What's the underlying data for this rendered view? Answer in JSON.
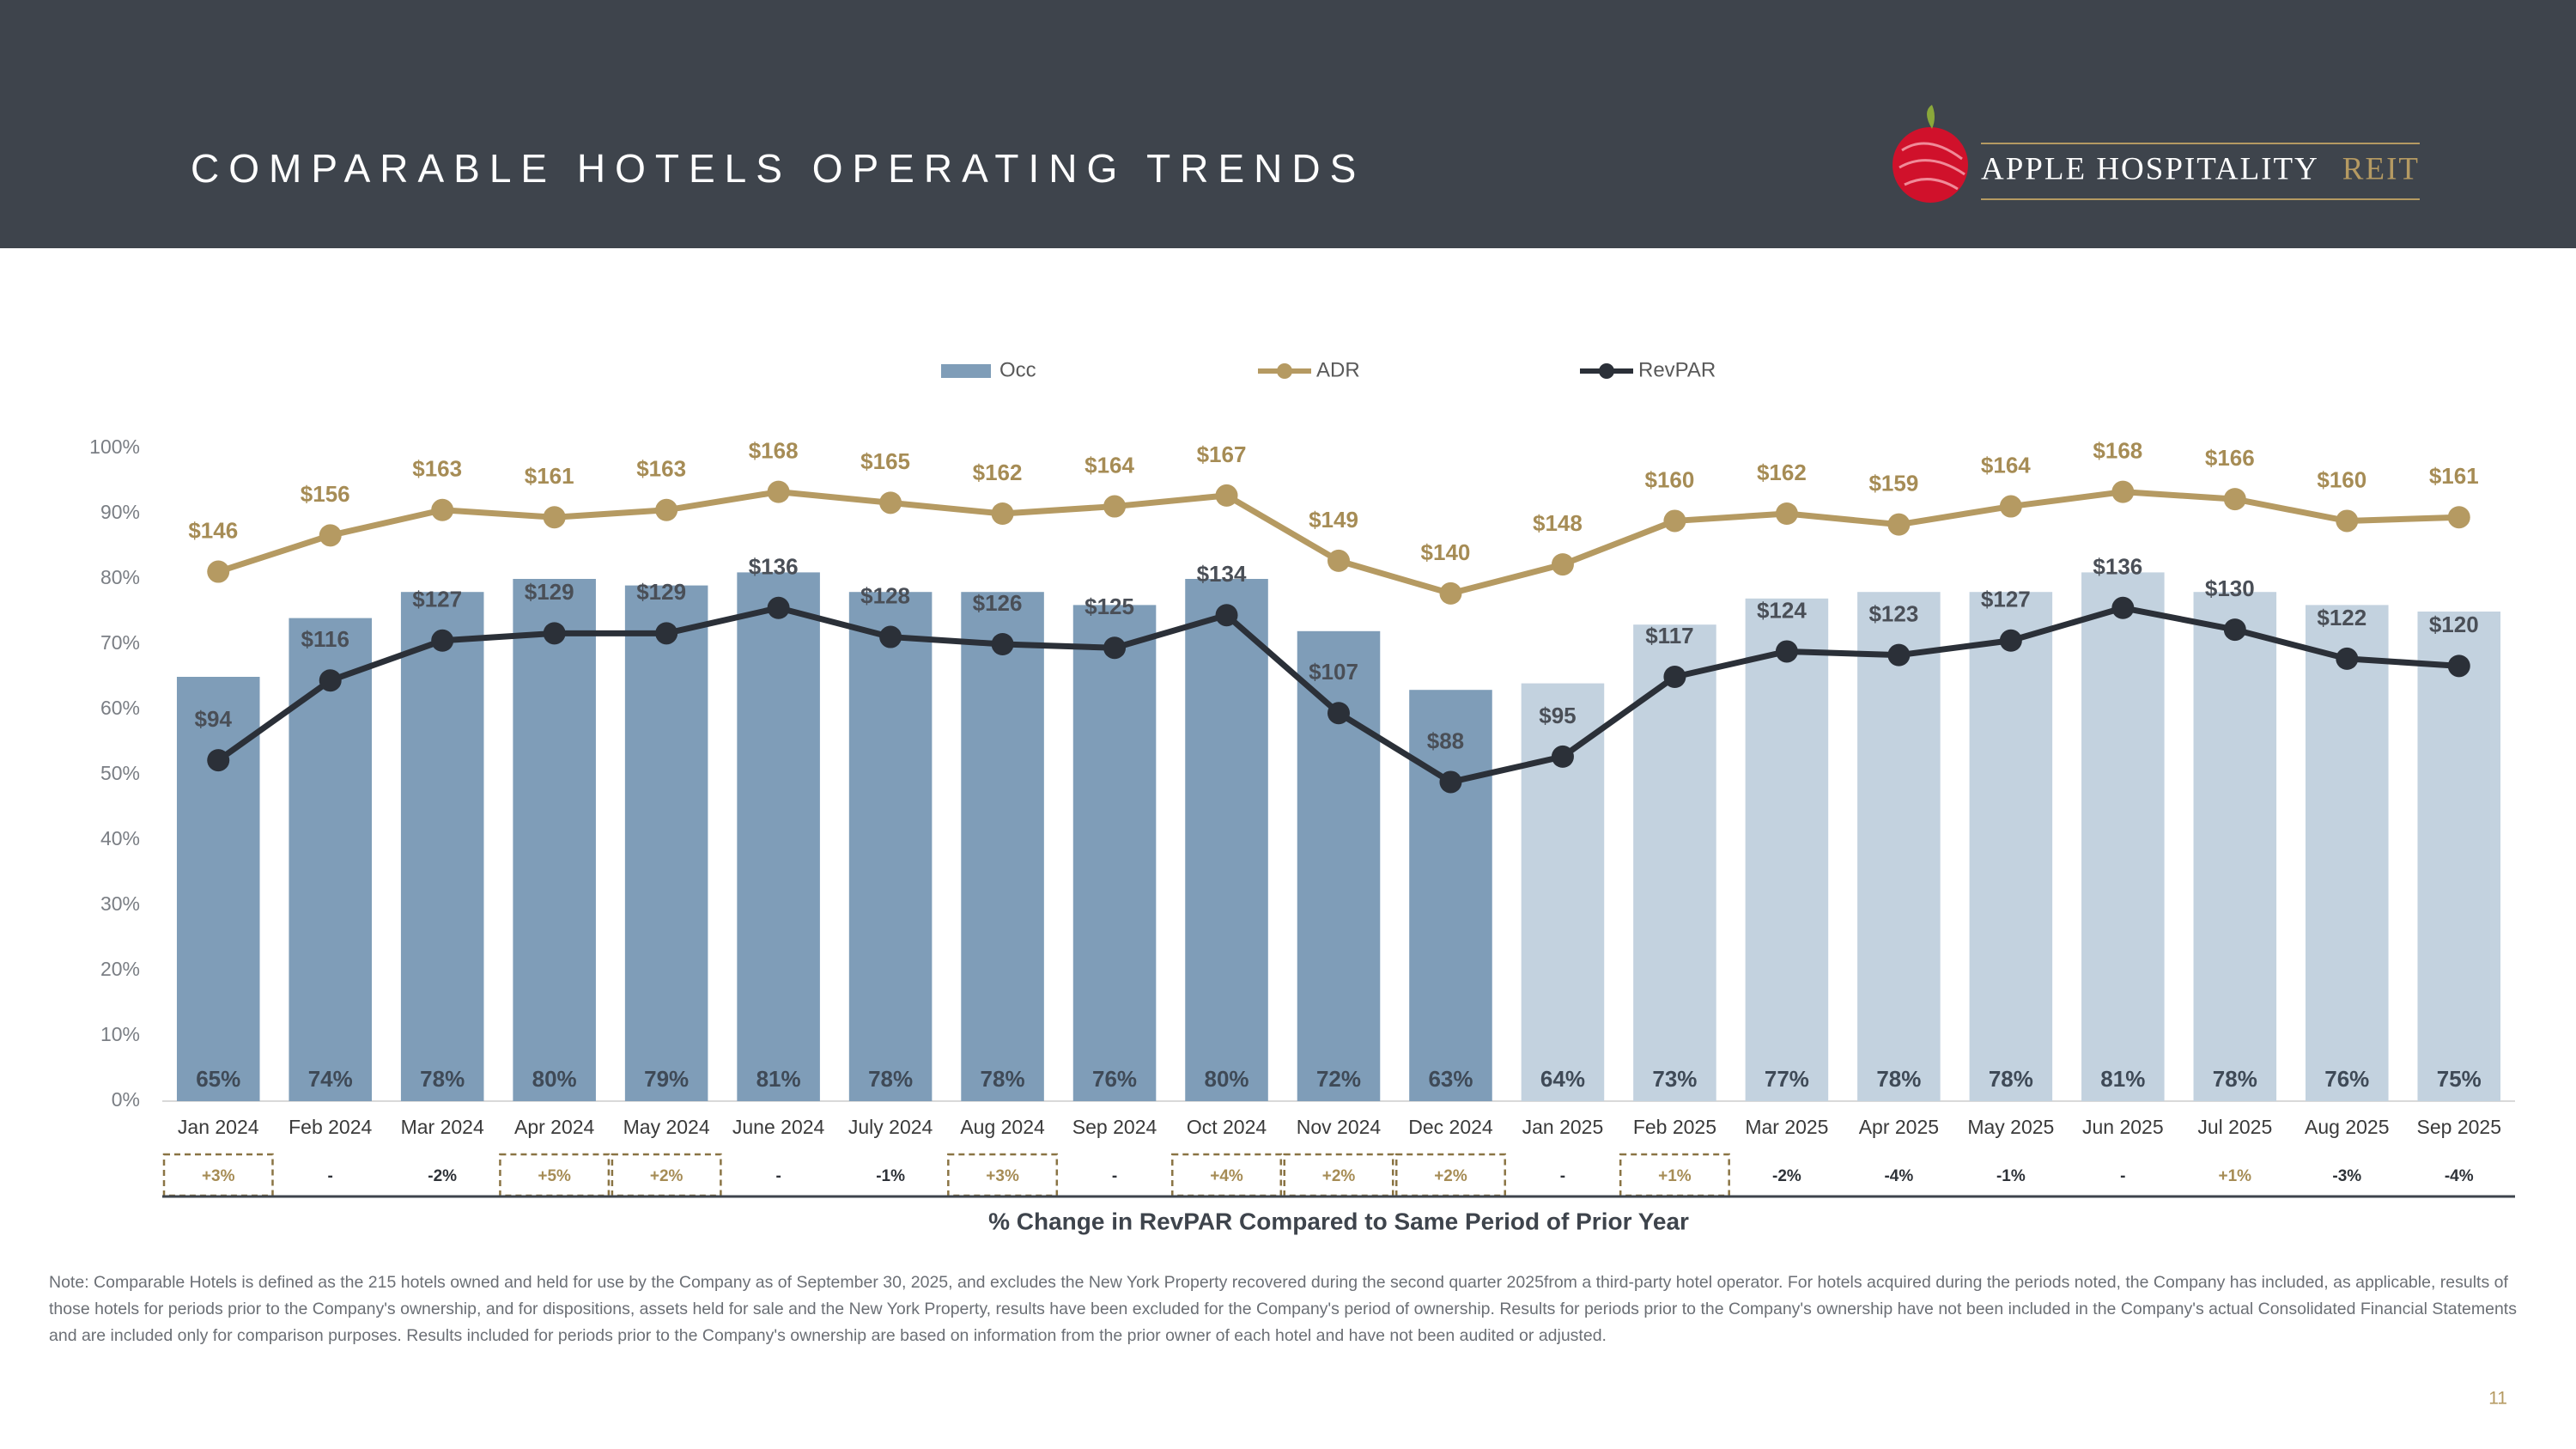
{
  "header": {
    "title": "COMPARABLE HOTELS OPERATING TRENDS",
    "logo_name": "APPLE HOSPITALITY",
    "logo_suffix": "REIT"
  },
  "chart_data": {
    "type": "combo",
    "categories": [
      "Jan 2024",
      "Feb 2024",
      "Mar 2024",
      "Apr 2024",
      "May 2024",
      "June 2024",
      "July 2024",
      "Aug 2024",
      "Sep 2024",
      "Oct 2024",
      "Nov 2024",
      "Dec 2024",
      "Jan 2025",
      "Feb 2025",
      "Mar 2025",
      "Apr 2025",
      "May 2025",
      "Jun 2025",
      "Jul 2025",
      "Aug 2025",
      "Sep 2025"
    ],
    "series": [
      {
        "name": "Occ",
        "type": "bar",
        "color": "#7f9db8",
        "colors": [
          "#7f9db8",
          "#7f9db8",
          "#7f9db8",
          "#7f9db8",
          "#7f9db8",
          "#7f9db8",
          "#7f9db8",
          "#7f9db8",
          "#7f9db8",
          "#7f9db8",
          "#7f9db8",
          "#7f9db8",
          "#c3d2df",
          "#c3d2df",
          "#c3d2df",
          "#c3d2df",
          "#c3d2df",
          "#c3d2df",
          "#c3d2df",
          "#c3d2df",
          "#c3d2df"
        ],
        "values": [
          65,
          74,
          78,
          80,
          79,
          81,
          78,
          78,
          76,
          80,
          72,
          63,
          64,
          73,
          77,
          78,
          78,
          81,
          78,
          76,
          75
        ],
        "value_labels": [
          "65%",
          "74%",
          "78%",
          "80%",
          "79%",
          "81%",
          "78%",
          "78%",
          "76%",
          "80%",
          "72%",
          "63%",
          "64%",
          "73%",
          "77%",
          "78%",
          "78%",
          "81%",
          "78%",
          "76%",
          "75%"
        ]
      },
      {
        "name": "ADR",
        "type": "line",
        "axis": "y2",
        "color": "#b59a62",
        "values": [
          146,
          156,
          163,
          161,
          163,
          168,
          165,
          162,
          164,
          167,
          149,
          140,
          148,
          160,
          162,
          159,
          164,
          168,
          166,
          160,
          161
        ],
        "value_labels": [
          "$146",
          "$156",
          "$163",
          "$161",
          "$163",
          "$168",
          "$165",
          "$162",
          "$164",
          "$167",
          "$149",
          "$140",
          "$148",
          "$160",
          "$162",
          "$159",
          "$164",
          "$168",
          "$166",
          "$160",
          "$161"
        ]
      },
      {
        "name": "RevPAR",
        "type": "line",
        "axis": "y2",
        "color": "#2b3038",
        "values": [
          94,
          116,
          127,
          129,
          129,
          136,
          128,
          126,
          125,
          134,
          107,
          88,
          95,
          117,
          124,
          123,
          127,
          136,
          130,
          122,
          120
        ],
        "value_labels": [
          "$94",
          "$116",
          "$127",
          "$129",
          "$129",
          "$136",
          "$128",
          "$126",
          "$125",
          "$134",
          "$107",
          "$88",
          "$95",
          "$117",
          "$124",
          "$123",
          "$127",
          "$136",
          "$130",
          "$122",
          "$120"
        ]
      }
    ],
    "ylim": [
      0,
      100
    ],
    "yticks": [
      {
        "value": 0,
        "label": "0%"
      },
      {
        "value": 10,
        "label": "10%"
      },
      {
        "value": 20,
        "label": "20%"
      },
      {
        "value": 30,
        "label": "30%"
      },
      {
        "value": 40,
        "label": "40%"
      },
      {
        "value": 50,
        "label": "50%"
      },
      {
        "value": 60,
        "label": "60%"
      },
      {
        "value": 70,
        "label": "70%"
      },
      {
        "value": 80,
        "label": "80%"
      },
      {
        "value": 90,
        "label": "90%"
      },
      {
        "value": 100,
        "label": "100%"
      }
    ],
    "y2lim": [
      0,
      180
    ],
    "legend": "top"
  },
  "change": {
    "title": "% Change in RevPAR Compared to Same Period of Prior Year",
    "labels": [
      "+3%",
      "-",
      "-2%",
      "+5%",
      "+2%",
      "-",
      "-1%",
      "+3%",
      "-",
      "+4%",
      "+2%",
      "+2%",
      "-",
      "+1%",
      "-2%",
      "-4%",
      "-1%",
      "-",
      "+1%",
      "-3%",
      "-4%"
    ],
    "boxed": [
      true,
      false,
      false,
      true,
      true,
      false,
      false,
      true,
      false,
      true,
      true,
      true,
      false,
      true,
      false,
      false,
      false,
      false,
      false,
      false,
      false
    ]
  },
  "note": "Note: Comparable Hotels is defined as the 215 hotels owned and held for use by the Company as of September 30, 2025, and excludes the New York Property recovered during the second quarter 2025from a third-party hotel operator. For hotels acquired during the periods noted, the Company has included, as applicable, results of those hotels for periods prior to the Company's ownership, and for dispositions, assets held for sale and the New York Property, results have been excluded for the Company's period of ownership. Results for periods prior to the Company's ownership have not been included in the Company's actual Consolidated Financial Statements and are included only for comparison purposes. Results included for periods prior to the Company's ownership are based on information from the prior owner of each hotel and have not been audited or adjusted.",
  "page_number": "11"
}
